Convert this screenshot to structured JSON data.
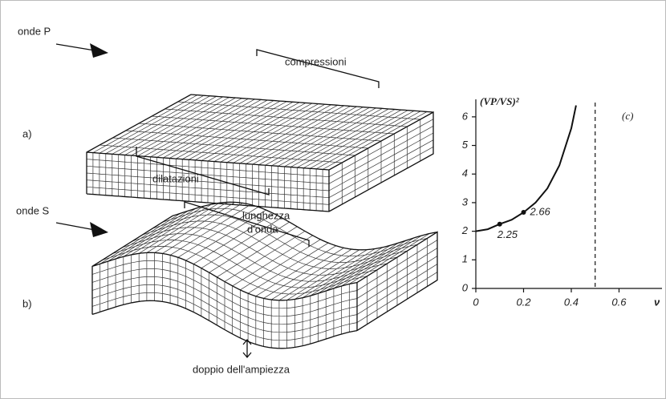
{
  "labels": {
    "onde_p": "onde P",
    "compressioni": "compressioni",
    "a": "a)",
    "dilatazioni": "dilatazioni",
    "onde_s": "onde S",
    "lunghezza": "lunghezza",
    "donda": "d'onda",
    "b": "b)",
    "doppio": "doppio dell'ampiezza"
  },
  "chart_data": {
    "type": "line",
    "title": "(c)",
    "y_label": "(VP/VS)²",
    "x_label": "ν",
    "x": [
      0,
      0.05,
      0.1,
      0.15,
      0.2,
      0.25,
      0.3,
      0.35,
      0.4,
      0.42
    ],
    "values": [
      2,
      2.07,
      2.25,
      2.4,
      2.66,
      3,
      3.5,
      4.3,
      5.6,
      6.4
    ],
    "markers": {
      "x": [
        0.1,
        0.2
      ],
      "values": [
        2.25,
        2.66
      ]
    },
    "vline": 0.5,
    "xlim": [
      0,
      0.78
    ],
    "ylim": [
      0,
      6.5
    ],
    "xticks": [
      0,
      0.2,
      0.4,
      0.6
    ],
    "yticks": [
      0,
      1,
      2,
      3,
      4,
      5,
      6
    ]
  }
}
